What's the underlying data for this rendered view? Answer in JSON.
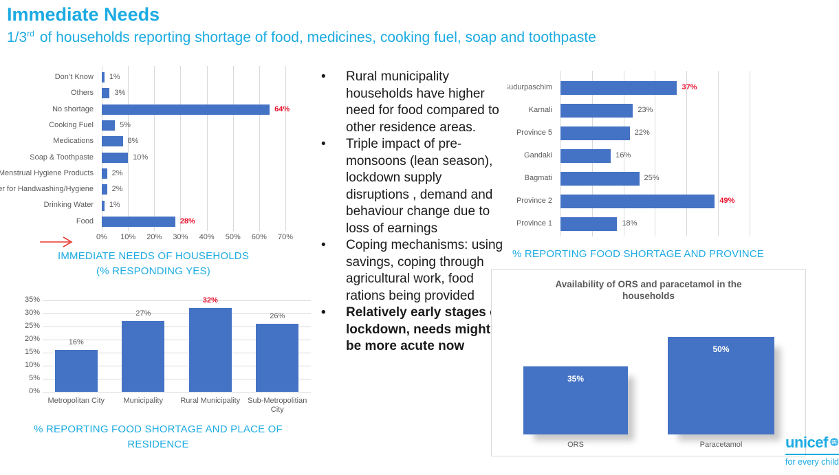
{
  "slide": {
    "title": "Immediate Needs",
    "subtitle": {
      "prefix": "1/3",
      "sup": "rd",
      "rest": "of households reporting shortage of food, medicines, cooking fuel, soap and toothpaste"
    }
  },
  "colors": {
    "cyan": "#1cabe2",
    "bar_blue": "#4472c4",
    "red": "#e8112d",
    "grid_gray": "#d9d9d9",
    "label_gray": "#595959",
    "text_dark": "#1a1a1a"
  },
  "bullets": [
    {
      "text": "Rural municipality households have higher need for food compared to other residence areas.",
      "bold": false
    },
    {
      "text": "Triple impact of pre-monsoons (lean season), lockdown supply disruptions , demand and behaviour change due to loss of earnings",
      "bold": false
    },
    {
      "text": "Coping mechanisms: using savings, coping through agricultural work, food rations being provided",
      "bold": false
    },
    {
      "text": "Relatively early stages of lockdown, needs might be more acute now",
      "bold": true
    }
  ],
  "chart_data": [
    {
      "id": "immediate-needs",
      "type": "bar",
      "orientation": "horizontal",
      "categories": [
        "Don’t Know",
        "Others",
        "No shortage",
        "Cooking Fuel",
        "Medications",
        "Soap & Toothpaste",
        "Menstrual Hygiene Products",
        "Water for Handwashing/Hygiene",
        "Drinking Water",
        "Food"
      ],
      "values": [
        1,
        3,
        64,
        5,
        8,
        10,
        2,
        2,
        1,
        28
      ],
      "value_labels": [
        "1%",
        "3%",
        "64%",
        "5%",
        "8%",
        "10%",
        "2%",
        "2%",
        "1%",
        "28%"
      ],
      "highlight_indexes": [
        2,
        9
      ],
      "xlim": [
        0,
        70
      ],
      "x_ticks": [
        "0%",
        "10%",
        "20%",
        "30%",
        "40%",
        "50%",
        "60%",
        "70%"
      ],
      "grid": true,
      "caption_lines": [
        "IMMEDIATE NEEDS OF HOUSEHOLDS",
        "(% RESPONDING YES)"
      ]
    },
    {
      "id": "food-shortage-residence",
      "type": "bar",
      "orientation": "vertical",
      "categories": [
        "Metropolitan City",
        "Municipality",
        "Rural Municipality",
        "Sub-Metropolitian City"
      ],
      "values": [
        16,
        27,
        32,
        26
      ],
      "value_labels": [
        "16%",
        "27%",
        "32%",
        "26%"
      ],
      "highlight_indexes": [
        2
      ],
      "ylim": [
        0,
        35
      ],
      "y_ticks": [
        "35%",
        "30%",
        "25%",
        "20%",
        "15%",
        "10%",
        "5%",
        "0%"
      ],
      "grid": true,
      "caption": "% REPORTING FOOD SHORTAGE AND PLACE OF RESIDENCE"
    },
    {
      "id": "food-shortage-province",
      "type": "bar",
      "orientation": "horizontal",
      "categories": [
        "Sudurpaschim",
        "Karnali",
        "Province 5",
        "Gandaki",
        "Bagmati",
        "Province 2",
        "Province 1"
      ],
      "values": [
        37,
        23,
        22,
        16,
        25,
        49,
        18
      ],
      "value_labels": [
        "37%",
        "23%",
        "22%",
        "16%",
        "25%",
        "49%",
        "18%"
      ],
      "highlight_indexes": [
        0,
        5
      ],
      "xlim": [
        0,
        60
      ],
      "grid": true,
      "caption": "% REPORTING FOOD SHORTAGE AND PROVINCE"
    },
    {
      "id": "ors-paracetamol",
      "type": "bar",
      "orientation": "vertical",
      "title": "Availability of ORS and paracetamol in the households",
      "categories": [
        "ORS",
        "Paracetamol"
      ],
      "values": [
        35,
        50
      ],
      "value_labels": [
        "35%",
        "50%"
      ],
      "label_position": "inside",
      "label_color": "#ffffff"
    }
  ],
  "logo": {
    "brand": "unicef",
    "tagline": "for every child"
  }
}
